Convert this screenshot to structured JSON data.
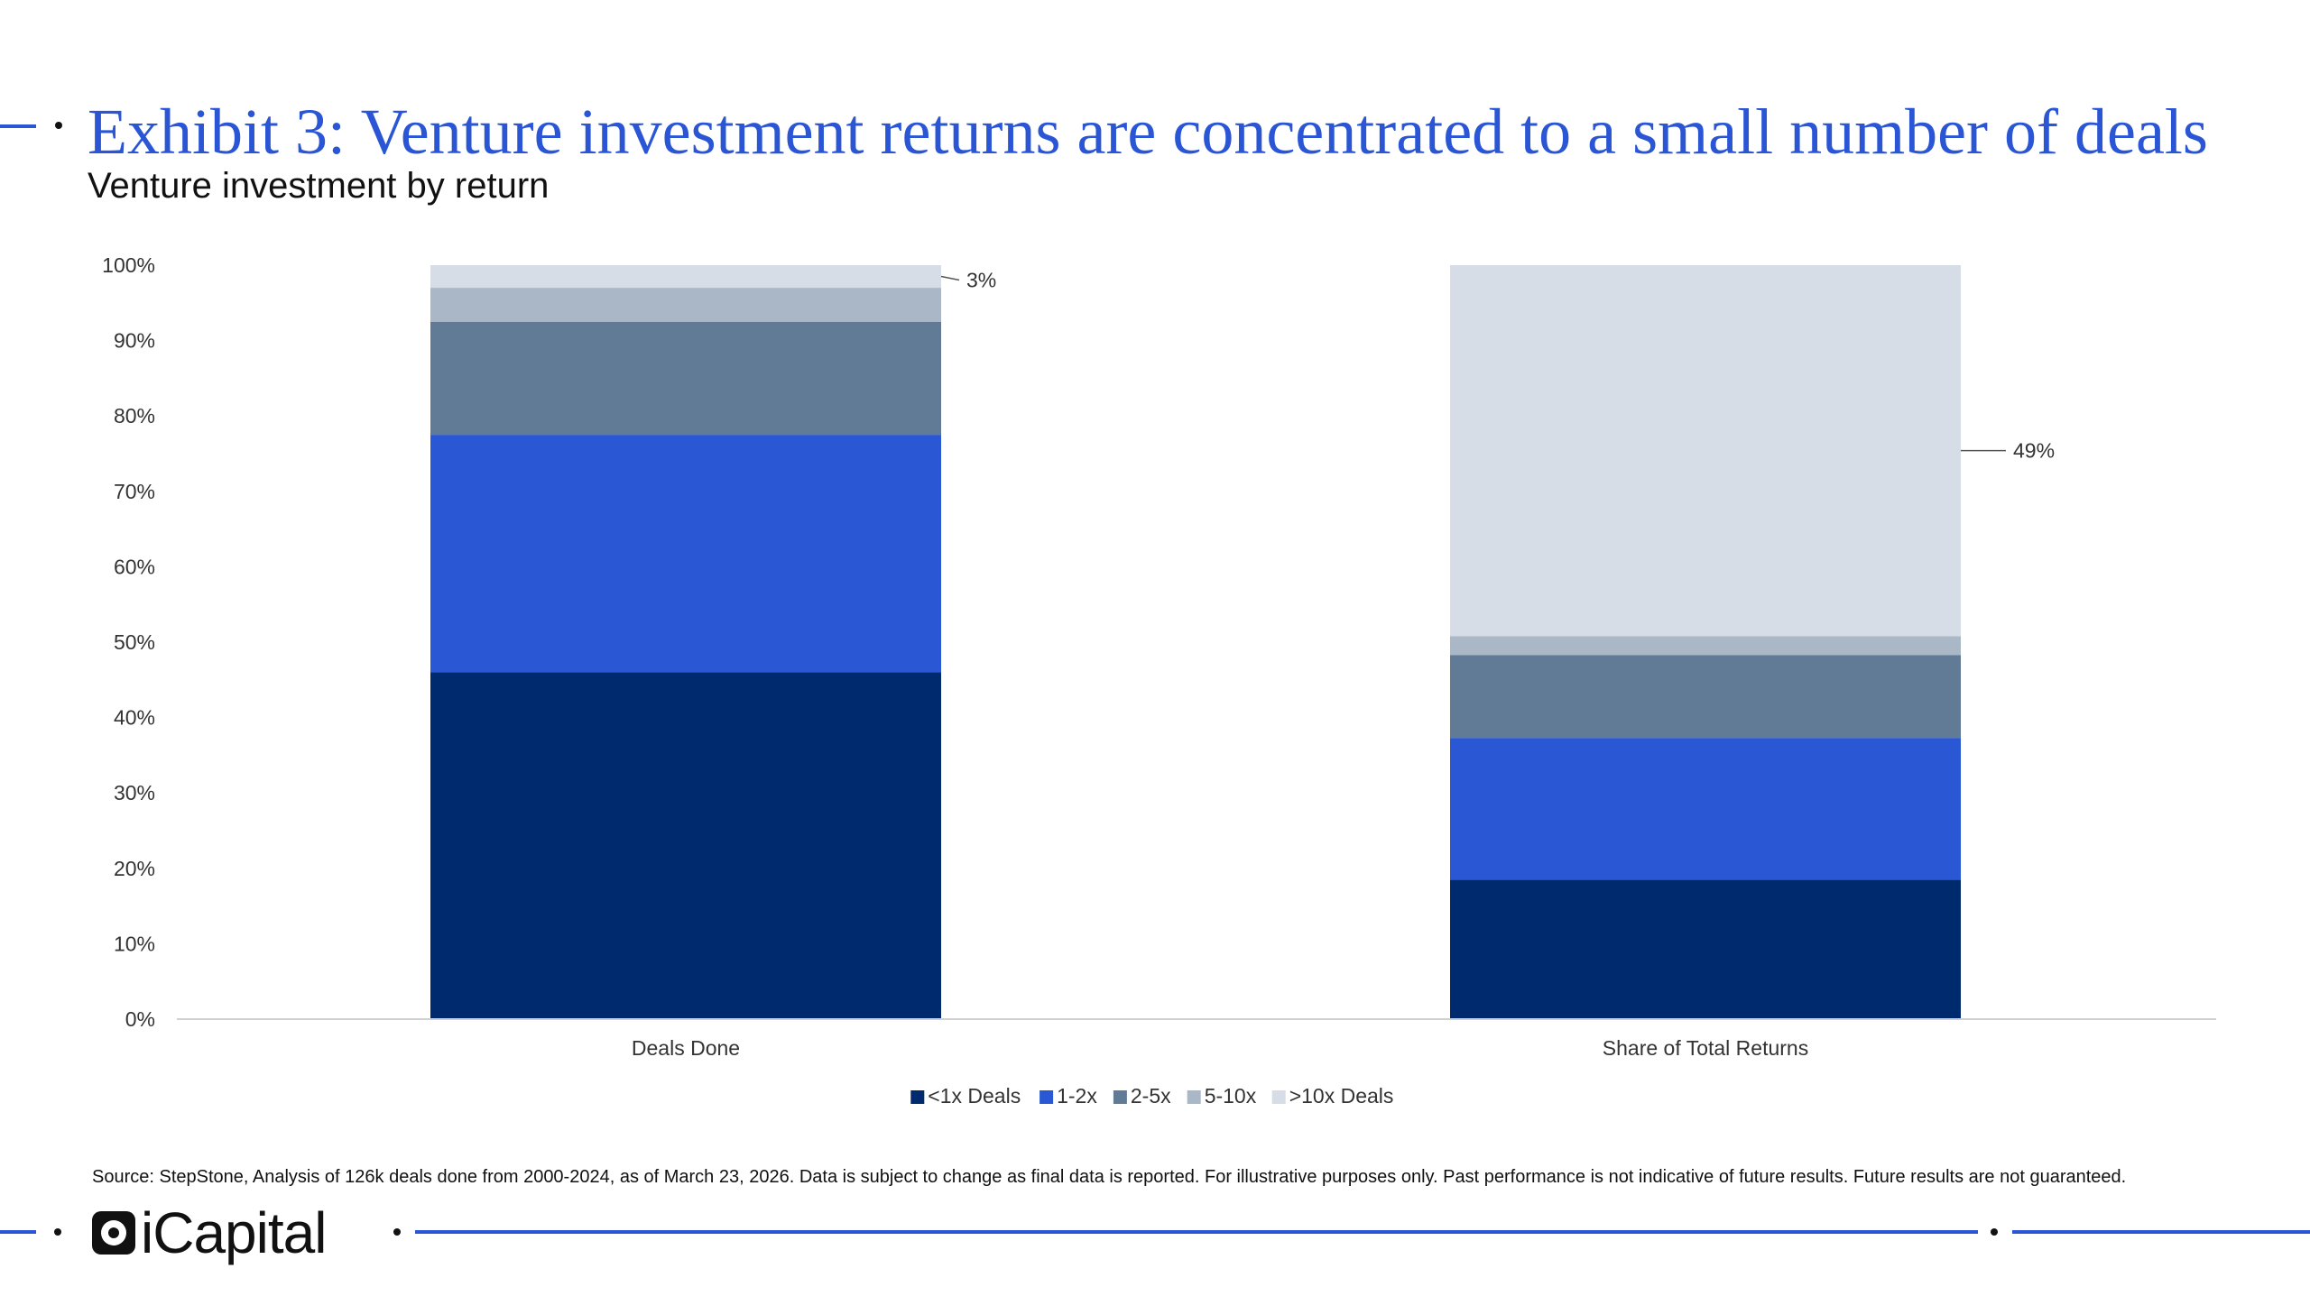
{
  "header": {
    "title": "Exhibit 3: Venture investment returns are concentrated to a small number of deals",
    "subtitle": "Venture investment by return"
  },
  "chart_data": {
    "type": "bar",
    "stacked": true,
    "categories": [
      "Deals Done",
      "Share of Total Returns"
    ],
    "series": [
      {
        "name": "<1x Deals",
        "color": "#002a6e",
        "values": [
          46,
          18.5
        ]
      },
      {
        "name": "1-2x",
        "color": "#2a58d4",
        "values": [
          31.5,
          18.8
        ]
      },
      {
        "name": "2-5x",
        "color": "#617b96",
        "values": [
          15,
          11
        ]
      },
      {
        "name": "5-10x",
        "color": "#a9b7c7",
        "values": [
          4.5,
          2.5
        ]
      },
      {
        "name": ">10x Deals",
        "color": "#d6dde6",
        "values": [
          3,
          49.2
        ]
      }
    ],
    "annotations": [
      {
        "category": "Deals Done",
        "series": ">10x Deals",
        "text": "3%"
      },
      {
        "category": "Share of Total Returns",
        "series": ">10x Deals",
        "text": "49%"
      }
    ],
    "yticks": [
      "0%",
      "10%",
      "20%",
      "30%",
      "40%",
      "50%",
      "60%",
      "70%",
      "80%",
      "90%",
      "100%"
    ],
    "ylim": [
      0,
      100
    ],
    "legend_position": "bottom-center",
    "grid": false
  },
  "source": "Source: StepStone, Analysis of 126k deals done from 2000-2024, as of March 23, 2026. Data is subject to change as final data is reported. For illustrative purposes only. Past performance is not indicative of future results. Future results are not guaranteed.",
  "footer": {
    "brand": "iCapital"
  }
}
